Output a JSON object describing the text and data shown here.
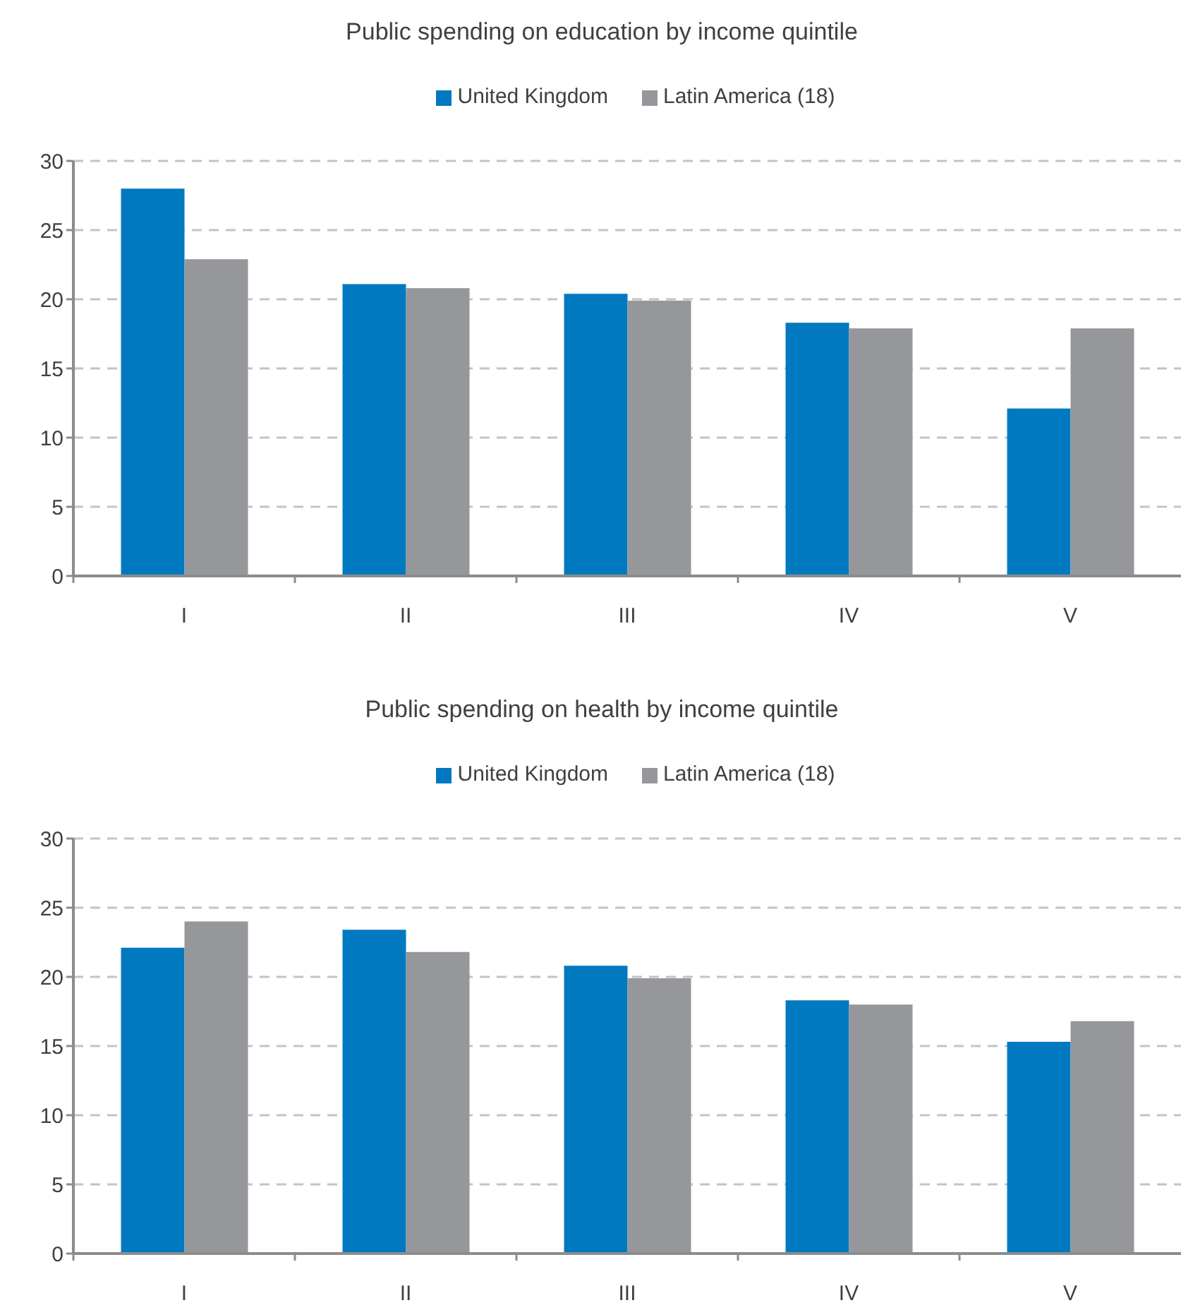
{
  "chart_data": [
    {
      "type": "bar",
      "title": "Public spending on education by income quintile",
      "categories": [
        "I",
        "II",
        "III",
        "IV",
        "V"
      ],
      "series": [
        {
          "name": "United Kingdom",
          "color": "#0079c1",
          "values": [
            28,
            21.1,
            20.4,
            18.3,
            12.1
          ]
        },
        {
          "name": "Latin America (18)",
          "color": "#96979b",
          "values": [
            22.9,
            20.8,
            19.9,
            17.9,
            17.9
          ]
        }
      ],
      "ylim": [
        0,
        30
      ],
      "yticks": [
        0,
        5,
        10,
        15,
        20,
        25,
        30
      ],
      "grid": "y",
      "legend": "top"
    },
    {
      "type": "bar",
      "title": "Public spending on health by income quintile",
      "categories": [
        "I",
        "II",
        "III",
        "IV",
        "V"
      ],
      "series": [
        {
          "name": "United Kingdom",
          "color": "#0079c1",
          "values": [
            22.1,
            23.4,
            20.8,
            18.3,
            15.3
          ]
        },
        {
          "name": "Latin America (18)",
          "color": "#96979b",
          "values": [
            24,
            21.8,
            19.9,
            18,
            16.8
          ]
        }
      ],
      "ylim": [
        0,
        30
      ],
      "yticks": [
        0,
        5,
        10,
        15,
        20,
        25,
        30
      ],
      "grid": "y",
      "legend": "top"
    }
  ]
}
